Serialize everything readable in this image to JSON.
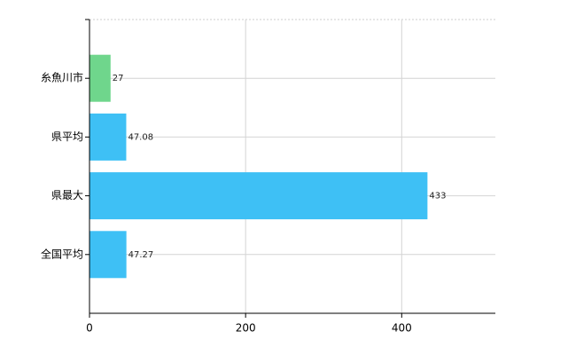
{
  "chart_data": {
    "type": "bar",
    "orientation": "horizontal",
    "categories": [
      "糸魚川市",
      "県平均",
      "県最大",
      "全国平均"
    ],
    "values": [
      27,
      47.08,
      433,
      47.27
    ],
    "colors": [
      "#6fd68c",
      "#3ec0f5",
      "#3ec0f5",
      "#3ec0f5"
    ],
    "xlim": [
      0,
      520
    ],
    "xticks": [
      0,
      200,
      400
    ],
    "grid": true
  }
}
